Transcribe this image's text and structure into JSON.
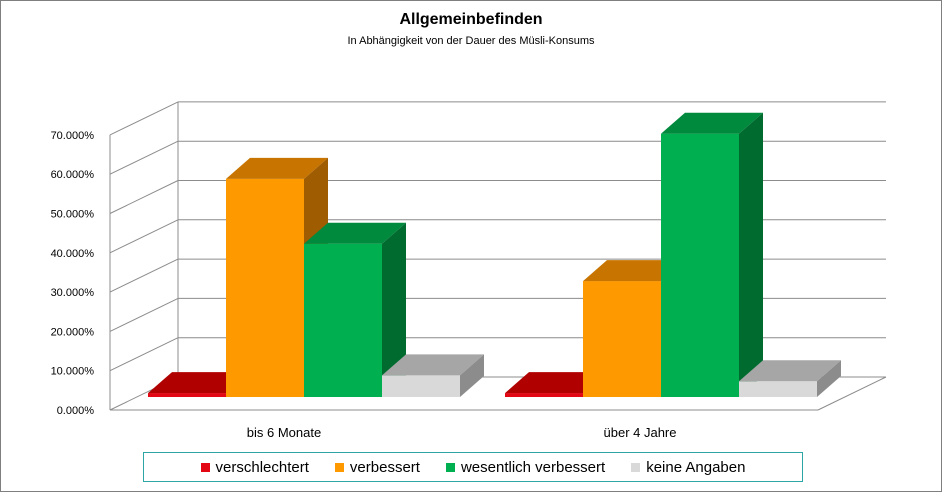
{
  "chart_data": {
    "type": "bar",
    "title": "Allgemeinbefinden",
    "subtitle": "In Abhängigkeit von der Dauer des Müsli-Konsums",
    "categories": [
      "bis 6 Monate",
      "über 4 Jahre"
    ],
    "series": [
      {
        "name": "verschlechtert",
        "values": [
          1.0,
          1.0
        ],
        "color": "#e30613",
        "top": "#b10000",
        "side": "#8c0000"
      },
      {
        "name": "verbessert",
        "values": [
          55.5,
          29.5
        ],
        "color": "#ff9900",
        "top": "#c77400",
        "side": "#a05c00"
      },
      {
        "name": "wesentlich verbessert",
        "values": [
          39.0,
          67.0
        ],
        "color": "#00b050",
        "top": "#008a3e",
        "side": "#006b2f"
      },
      {
        "name": "keine Angaben",
        "values": [
          5.5,
          4.0
        ],
        "color": "#d9d9d9",
        "top": "#a6a6a6",
        "side": "#8c8c8c"
      }
    ],
    "ylim": [
      0,
      70
    ],
    "yticks": [
      "0.000%",
      "10.000%",
      "20.000%",
      "30.000%",
      "40.000%",
      "50.000%",
      "60.000%",
      "70.000%"
    ],
    "grid": true,
    "legend_position": "bottom"
  }
}
